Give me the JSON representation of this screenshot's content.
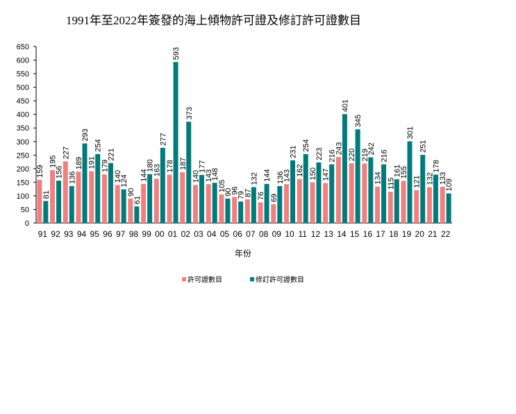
{
  "chart_data": {
    "type": "bar",
    "title": "1991年至2022年簽發的海上傾物許可證及修訂許可證數目",
    "xlabel": "年份",
    "ylabel": "",
    "ylim": [
      0,
      650
    ],
    "yticks": [
      0,
      50,
      100,
      150,
      200,
      250,
      300,
      350,
      400,
      450,
      500,
      550,
      600,
      650
    ],
    "grid": false,
    "legend_position": "bottom",
    "categories": [
      "91",
      "92",
      "93",
      "94",
      "95",
      "96",
      "97",
      "98",
      "99",
      "00",
      "01",
      "02",
      "03",
      "04",
      "05",
      "06",
      "07",
      "08",
      "09",
      "10",
      "11",
      "12",
      "13",
      "14",
      "15",
      "16",
      "17",
      "18",
      "19",
      "20",
      "21",
      "22"
    ],
    "series": [
      {
        "name": "許可證數目",
        "color": "#F08080",
        "values": [
          159,
          195,
          227,
          189,
          191,
          179,
          140,
          90,
          144,
          163,
          178,
          187,
          140,
          143,
          105,
          96,
          87,
          76,
          69,
          143,
          162,
          150,
          147,
          243,
          220,
          219,
          134,
          115,
          155,
          121,
          132,
          133
        ]
      },
      {
        "name": "修訂許可證數目",
        "color": "#007B7B",
        "values": [
          81,
          156,
          136,
          293,
          254,
          221,
          124,
          61,
          180,
          277,
          593,
          373,
          177,
          148,
          90,
          79,
          132,
          144,
          136,
          231,
          254,
          223,
          216,
          401,
          345,
          242,
          216,
          161,
          301,
          251,
          178,
          109
        ]
      }
    ]
  }
}
